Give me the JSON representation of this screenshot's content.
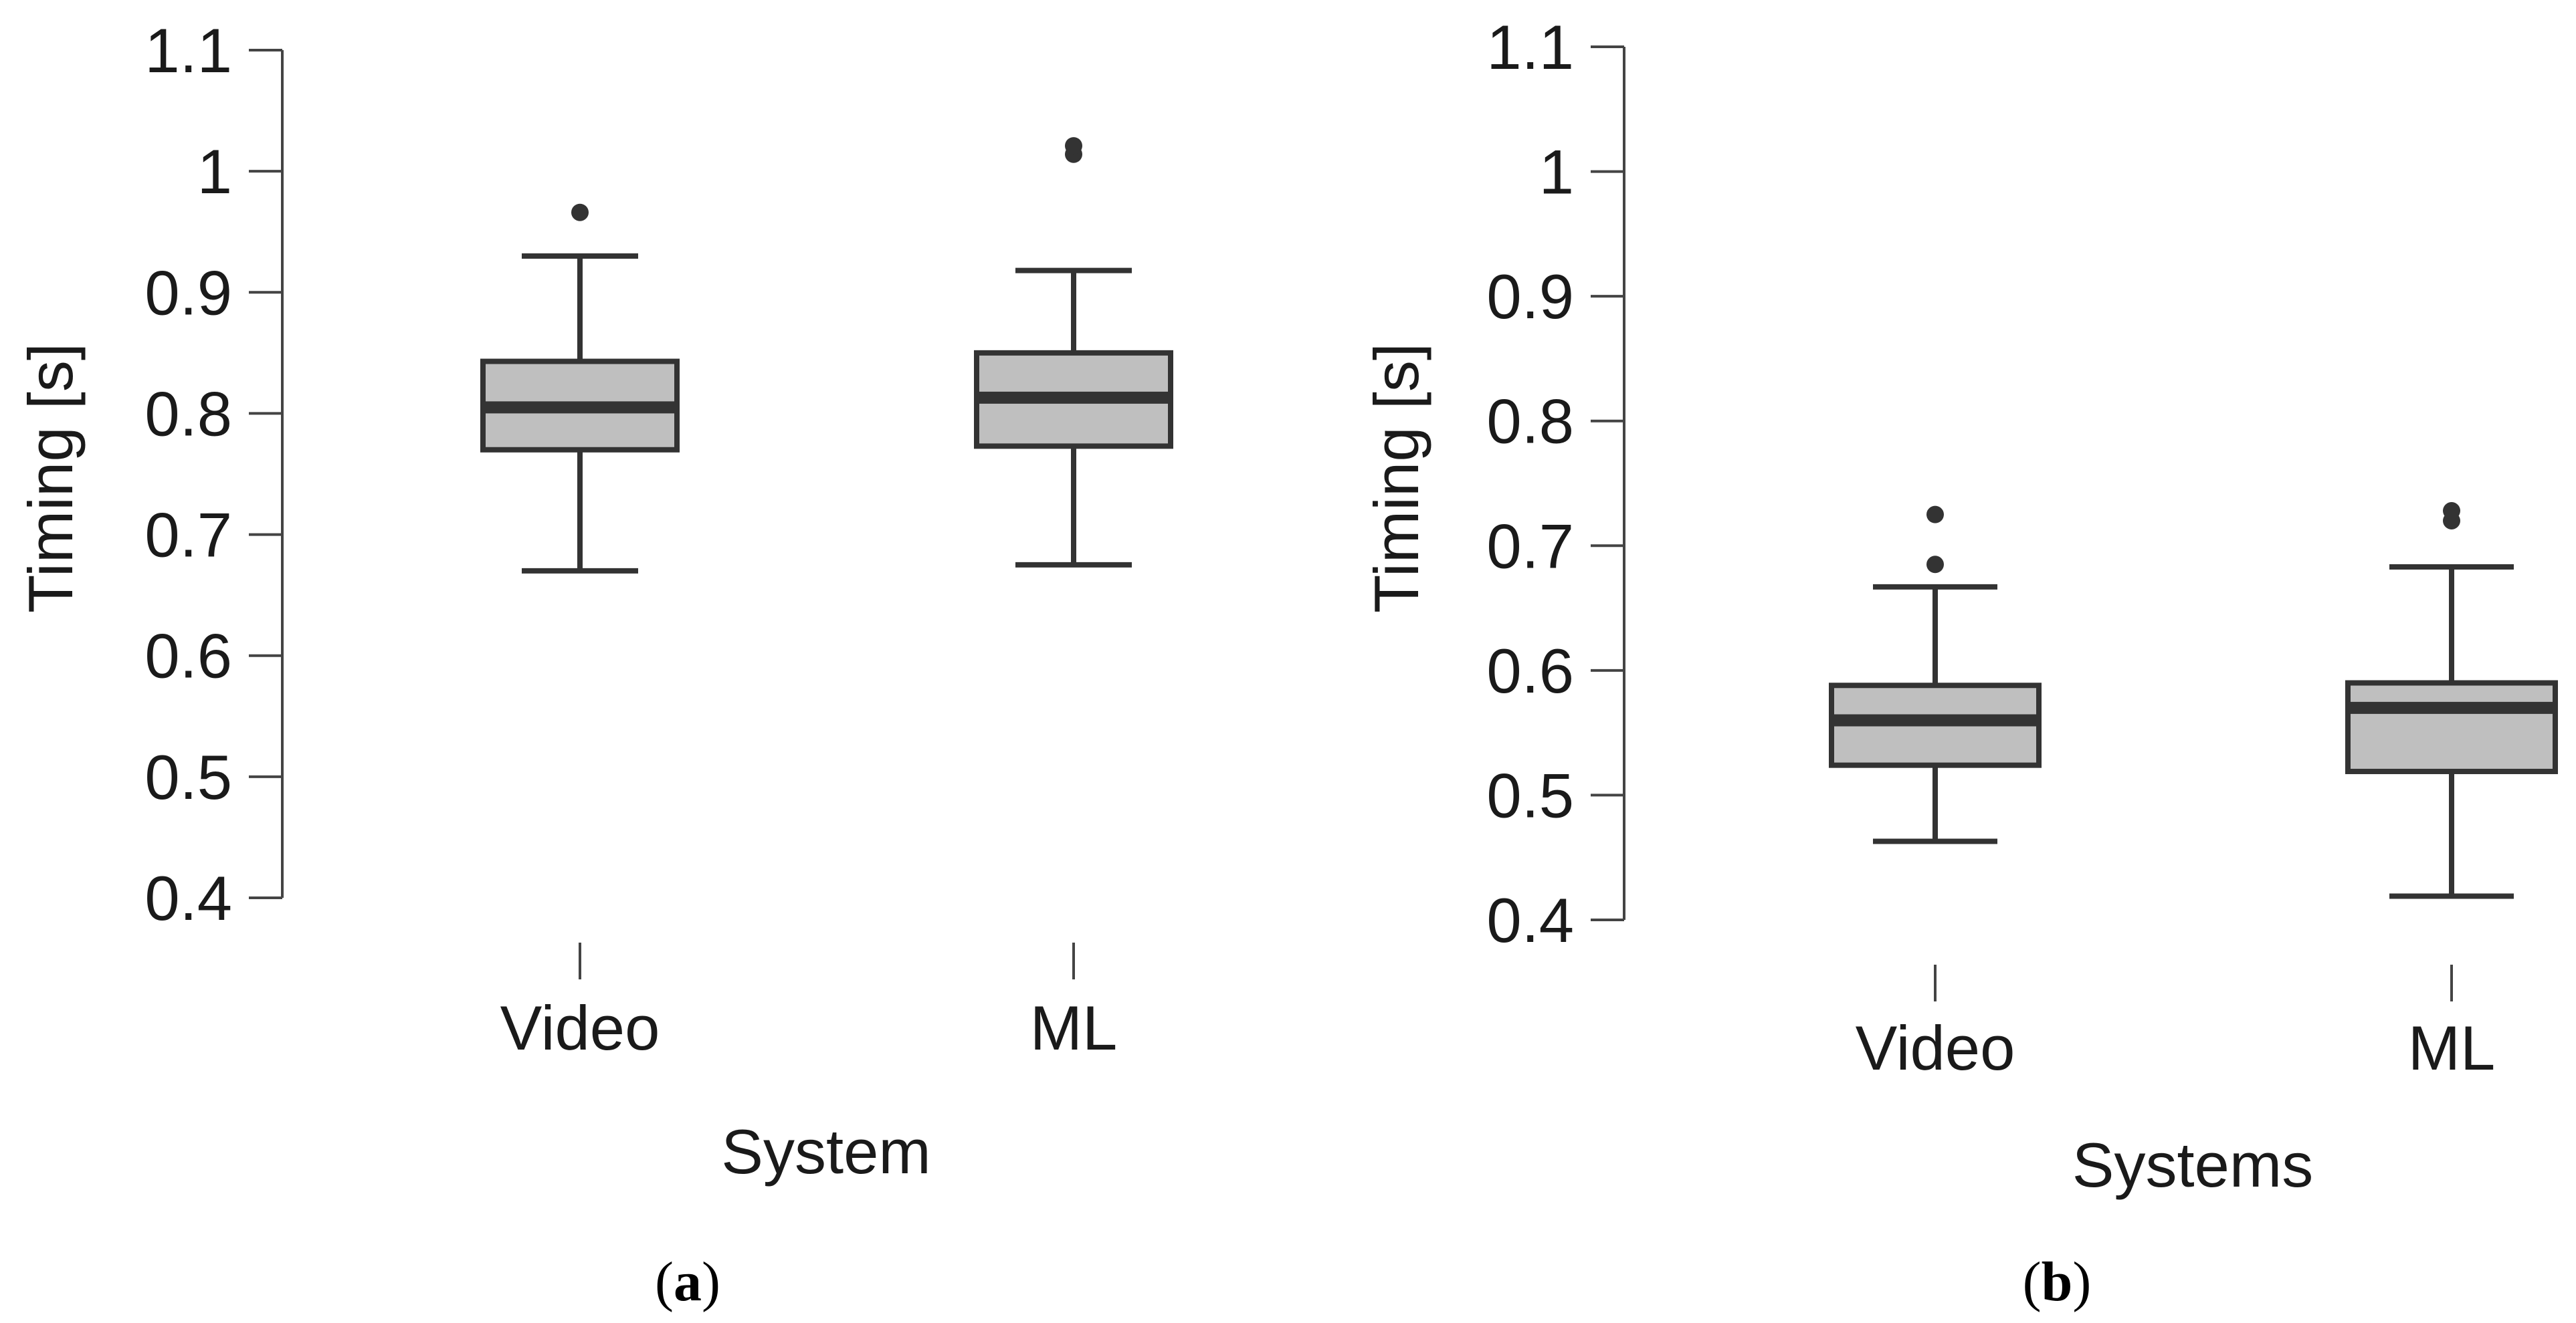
{
  "chart_data": [
    {
      "type": "box",
      "panel_label": "a",
      "xlabel": "System",
      "ylabel": "Timing [s]",
      "ylim": [
        0.4,
        1.1
      ],
      "yticks": [
        "0.4",
        "0.5",
        "0.6",
        "0.7",
        "0.8",
        "0.9",
        "1",
        "1.1"
      ],
      "categories": [
        "Video",
        "ML"
      ],
      "boxes": [
        {
          "category": "Video",
          "whisker_low": 0.67,
          "q1": 0.77,
          "median": 0.805,
          "q3": 0.843,
          "whisker_high": 0.93,
          "outliers": [
            0.966
          ]
        },
        {
          "category": "ML",
          "whisker_low": 0.675,
          "q1": 0.773,
          "median": 0.813,
          "q3": 0.85,
          "whisker_high": 0.918,
          "outliers": [
            1.014,
            1.021
          ]
        }
      ],
      "grid": false,
      "colors": {
        "box_fill": "#bfbfbf",
        "stroke": "#333333"
      }
    },
    {
      "type": "box",
      "panel_label": "b",
      "xlabel": "Systems",
      "ylabel": "Timing [s]",
      "ylim": [
        0.4,
        1.1
      ],
      "yticks": [
        "0.4",
        "0.5",
        "0.6",
        "0.7",
        "0.8",
        "0.9",
        "1",
        "1.1"
      ],
      "categories": [
        "Video",
        "ML"
      ],
      "boxes": [
        {
          "category": "Video",
          "whisker_low": 0.463,
          "q1": 0.524,
          "median": 0.56,
          "q3": 0.588,
          "whisker_high": 0.667,
          "outliers": [
            0.685,
            0.725
          ]
        },
        {
          "category": "ML",
          "whisker_low": 0.419,
          "q1": 0.519,
          "median": 0.57,
          "q3": 0.59,
          "whisker_high": 0.683,
          "outliers": [
            0.72,
            0.728
          ]
        }
      ],
      "grid": false,
      "colors": {
        "box_fill": "#bfbfbf",
        "stroke": "#333333"
      }
    }
  ]
}
